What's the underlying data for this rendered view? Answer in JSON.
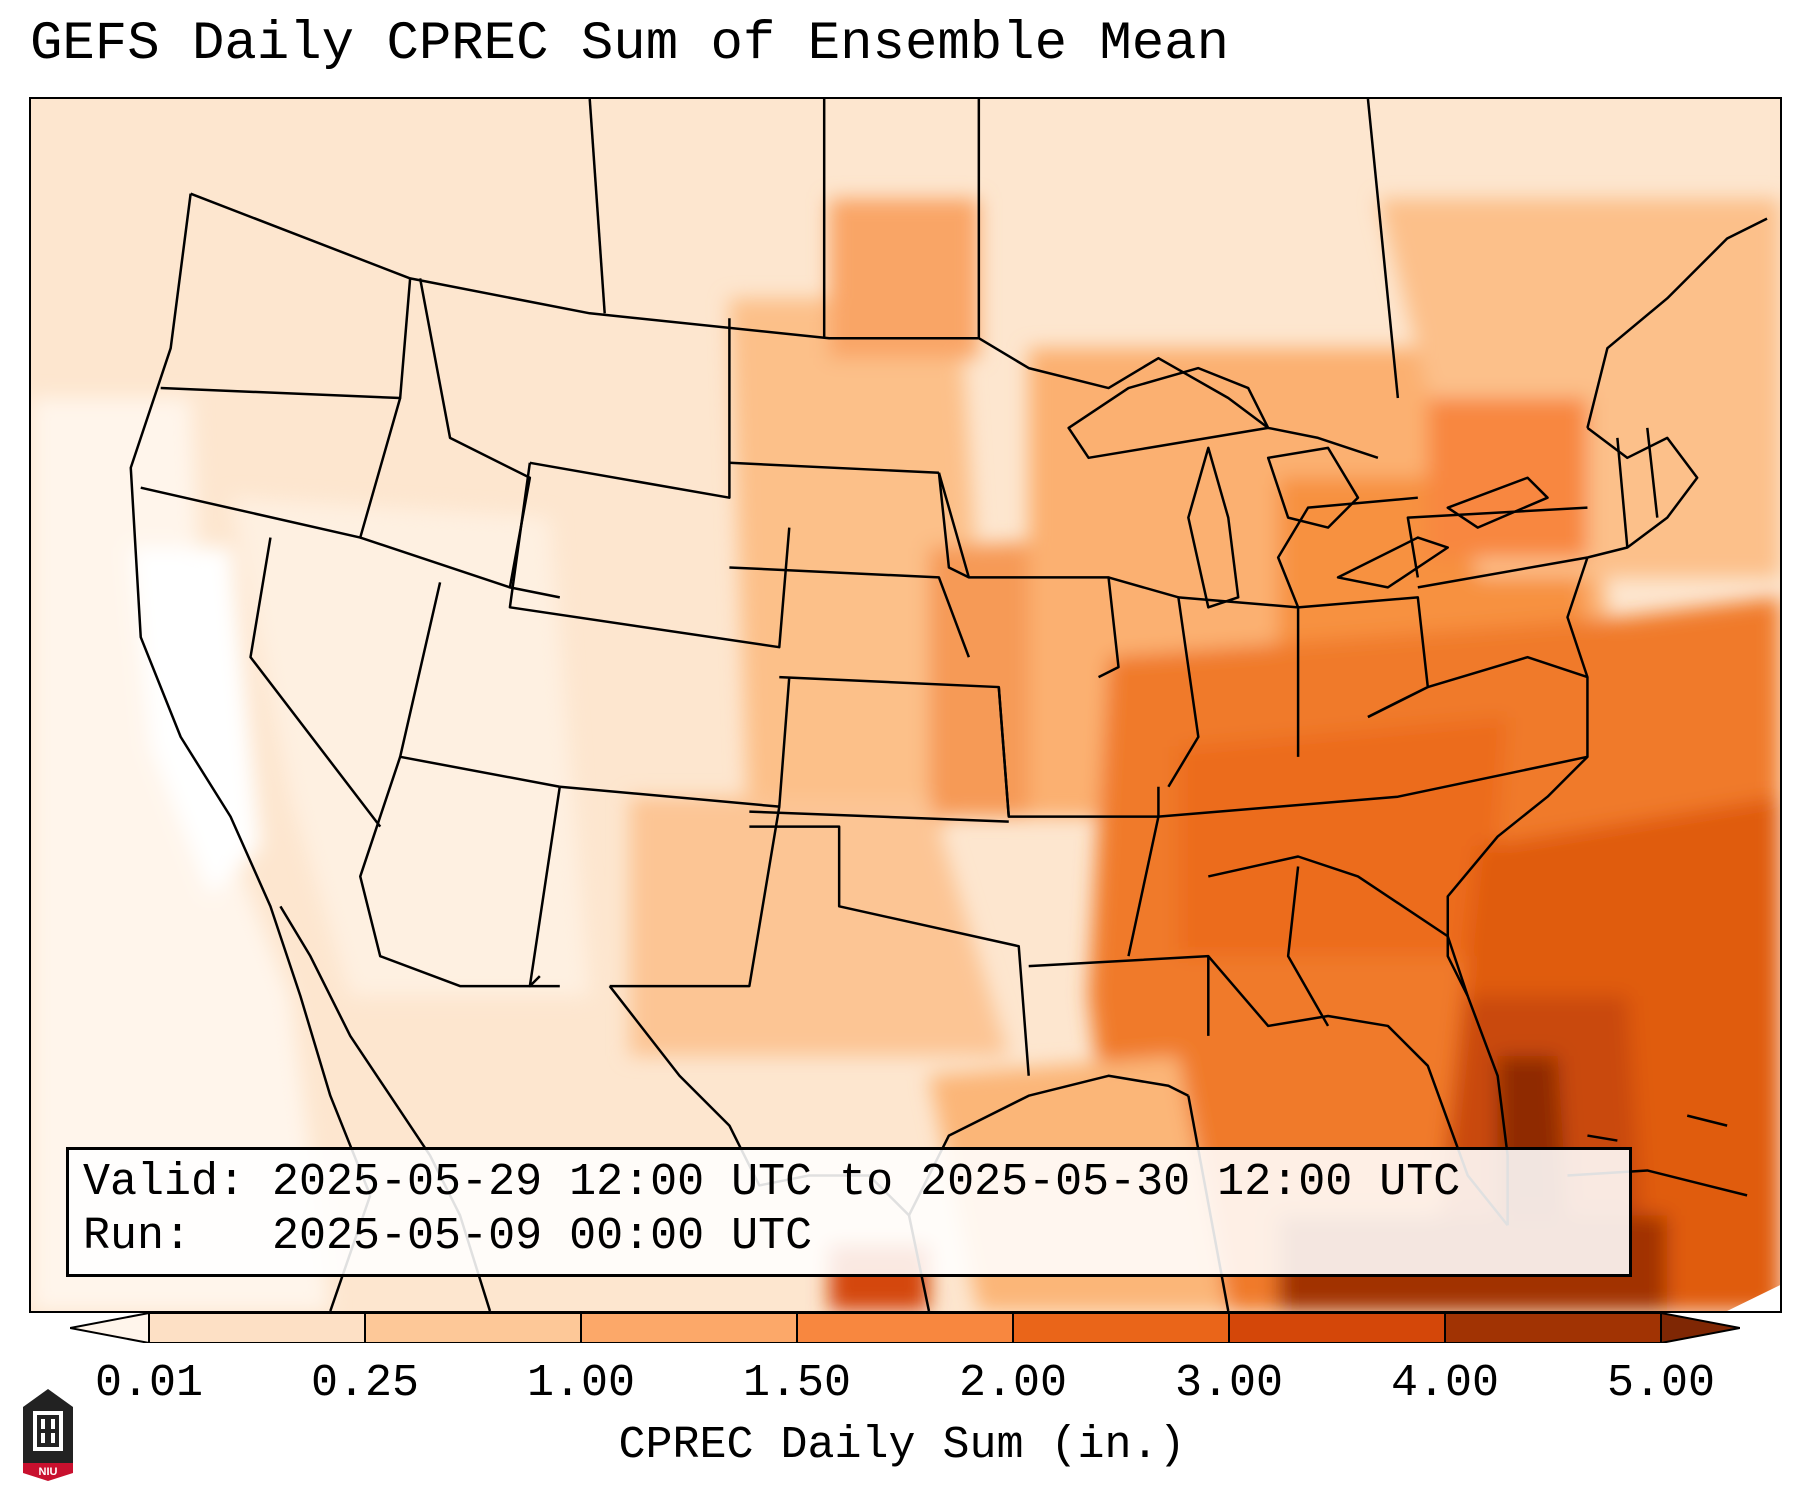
{
  "title": "GEFS Daily CPREC Sum of Ensemble Mean",
  "valid_label": "Valid: 2025-05-29 12:00 UTC to 2025-05-30 12:00 UTC",
  "run_label": "Run:   2025-05-09 00:00 UTC",
  "colorbar": {
    "label": "CPREC Daily Sum (in.)",
    "ticks": [
      "0.01",
      "0.25",
      "1.00",
      "1.50",
      "2.00",
      "3.00",
      "4.00",
      "5.00"
    ],
    "colors": [
      "#fff5eb",
      "#fde0c5",
      "#fdc898",
      "#fca869",
      "#f8873f",
      "#ea6519",
      "#d44709",
      "#a13303",
      "#7f2704"
    ]
  },
  "logo_text": "NIU",
  "colors": {
    "background": "#ffffff",
    "border": "#000000",
    "logo_red": "#c8102e"
  }
}
